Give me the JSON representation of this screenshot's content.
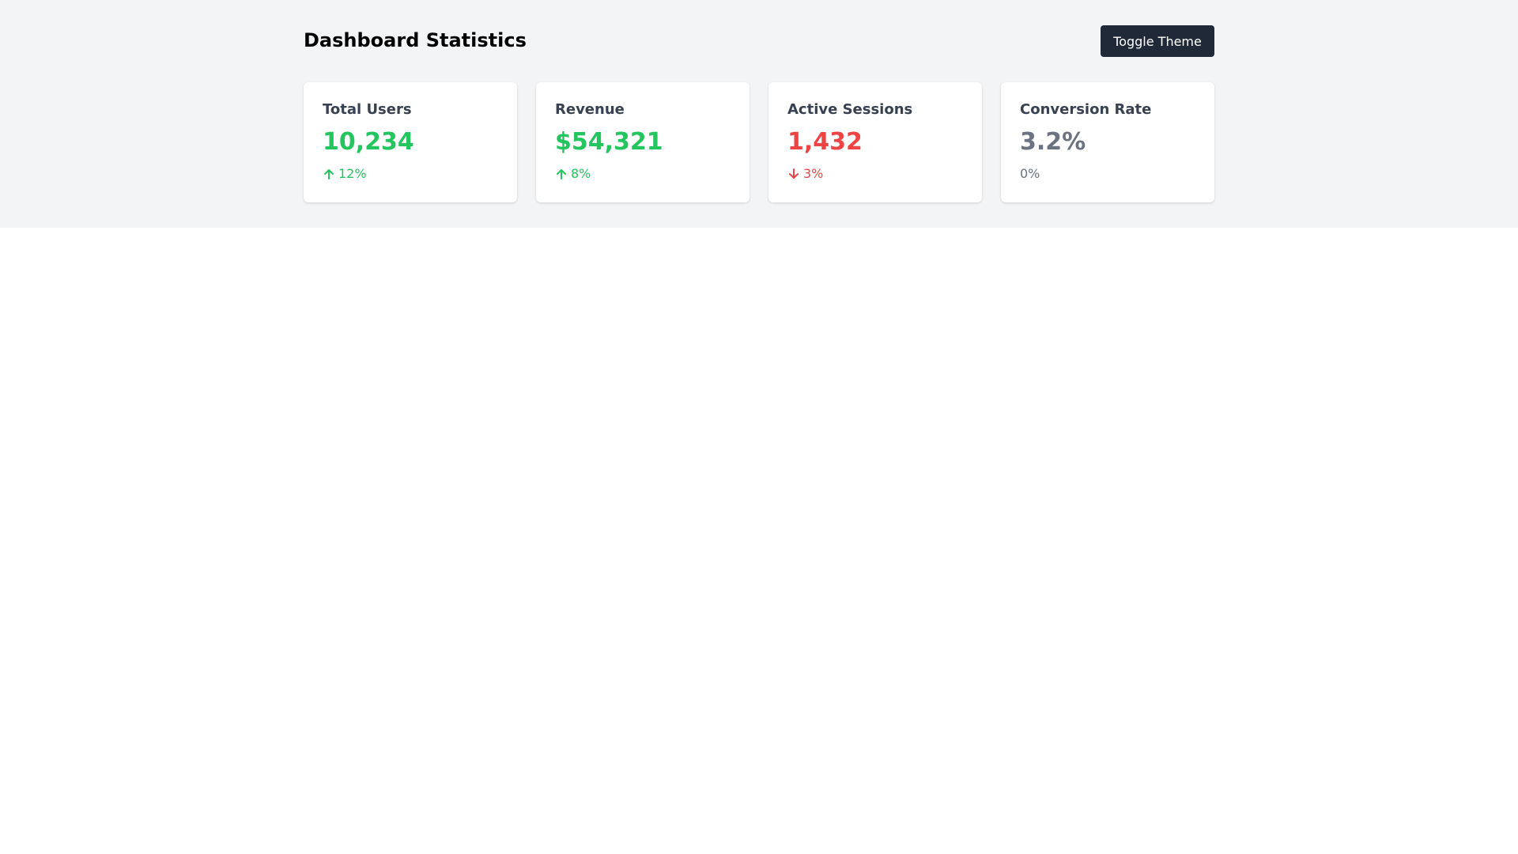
{
  "header": {
    "title": "Dashboard Statistics",
    "toggle_label": "Toggle Theme"
  },
  "colors": {
    "positive": "#22c55e",
    "negative": "#ef4444",
    "neutral": "#6b7280",
    "button_bg": "#1f2937",
    "page_bg": "#f3f4f6"
  },
  "cards": [
    {
      "title": "Total Users",
      "value": "10,234",
      "change": "12%",
      "trend": "up",
      "icon": "arrow-up-icon"
    },
    {
      "title": "Revenue",
      "value": "$54,321",
      "change": "8%",
      "trend": "up",
      "icon": "arrow-up-icon"
    },
    {
      "title": "Active Sessions",
      "value": "1,432",
      "change": "3%",
      "trend": "down",
      "icon": "arrow-down-icon"
    },
    {
      "title": "Conversion Rate",
      "value": "3.2%",
      "change": "0%",
      "trend": "neutral",
      "icon": ""
    }
  ]
}
